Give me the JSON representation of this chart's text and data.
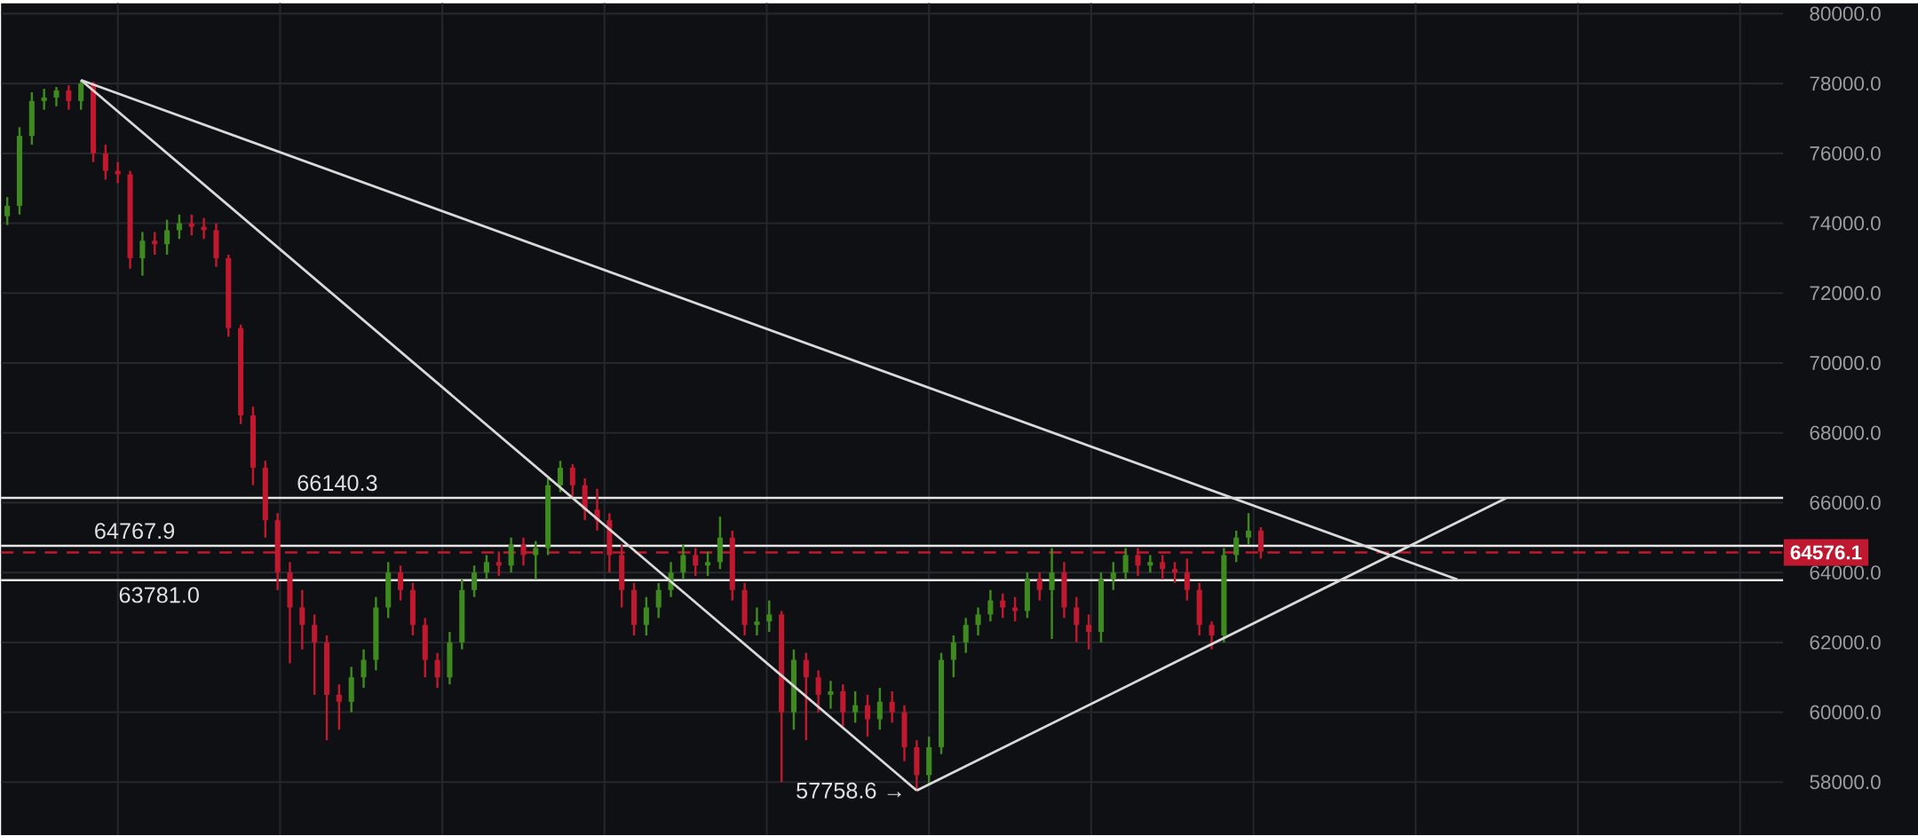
{
  "chart_data": {
    "type": "candlestick",
    "categories": [
      null,
      null,
      null,
      null,
      null,
      null,
      null,
      null,
      null,
      null,
      null,
      null,
      null,
      null,
      null,
      null,
      null,
      null,
      null,
      null,
      null,
      null,
      null,
      null,
      null,
      null,
      null,
      null,
      null,
      null,
      null,
      null,
      null,
      null,
      null,
      null,
      null,
      null,
      null,
      null,
      null,
      null,
      null,
      null,
      null,
      null,
      null,
      null,
      null,
      null,
      null,
      null,
      null,
      null,
      null,
      null,
      null,
      null,
      null,
      null,
      null,
      null,
      null,
      null,
      null,
      null,
      null,
      null,
      null,
      null,
      null,
      null,
      null,
      null,
      null,
      null,
      null,
      null,
      null,
      null,
      null,
      null,
      null,
      null,
      null,
      null,
      null,
      null,
      null,
      null,
      null,
      null,
      null,
      null,
      null,
      null,
      null,
      null,
      null,
      null,
      null,
      null,
      null,
      null,
      null,
      null,
      null,
      null,
      null,
      null,
      null,
      null,
      null,
      null,
      null,
      null,
      null,
      null,
      null,
      null,
      null,
      null,
      null,
      null,
      null,
      null,
      null,
      null,
      null,
      null,
      null,
      null,
      null,
      null,
      null,
      null,
      null,
      null,
      null,
      null,
      null,
      null,
      null,
      null,
      null
    ],
    "ohlc": [
      [
        74200,
        74750,
        73950,
        74500
      ],
      [
        74500,
        76750,
        74250,
        76500
      ],
      [
        76500,
        77750,
        76250,
        77500
      ],
      [
        77500,
        77850,
        77250,
        77600
      ],
      [
        77600,
        77900,
        77350,
        77800
      ],
      [
        77800,
        77950,
        77250,
        77500
      ],
      [
        77500,
        78100,
        77250,
        78000
      ],
      [
        78000,
        78050,
        75750,
        76000
      ],
      [
        76000,
        76250,
        75250,
        75500
      ],
      [
        75500,
        75750,
        75150,
        75400
      ],
      [
        75400,
        75500,
        72700,
        73000
      ],
      [
        73000,
        73750,
        72500,
        73500
      ],
      [
        73500,
        73750,
        73100,
        73400
      ],
      [
        73400,
        74100,
        73100,
        73800
      ],
      [
        73800,
        74250,
        73550,
        74000
      ],
      [
        74000,
        74250,
        73650,
        73900
      ],
      [
        73900,
        74150,
        73550,
        73800
      ],
      [
        73800,
        74000,
        72750,
        73000
      ],
      [
        73000,
        73100,
        70750,
        71000
      ],
      [
        71000,
        71100,
        68250,
        68500
      ],
      [
        68500,
        68750,
        66500,
        67000
      ],
      [
        67000,
        67200,
        65000,
        65500
      ],
      [
        65500,
        65700,
        63500,
        64000
      ],
      [
        64000,
        64300,
        61400,
        63000
      ],
      [
        63000,
        63500,
        61800,
        62500
      ],
      [
        62500,
        62800,
        60500,
        62000
      ],
      [
        62000,
        62200,
        59200,
        60500
      ],
      [
        60500,
        60800,
        59500,
        60300
      ],
      [
        60300,
        61300,
        60000,
        61000
      ],
      [
        61000,
        61800,
        60700,
        61500
      ],
      [
        61500,
        63300,
        61200,
        63000
      ],
      [
        63000,
        64300,
        62700,
        64000
      ],
      [
        64000,
        64200,
        63200,
        63500
      ],
      [
        63500,
        63700,
        62200,
        62500
      ],
      [
        62500,
        62700,
        61000,
        61500
      ],
      [
        61500,
        61700,
        60700,
        61000
      ],
      [
        61000,
        62300,
        60800,
        62000
      ],
      [
        62000,
        63800,
        61800,
        63500
      ],
      [
        63500,
        64200,
        63300,
        64000
      ],
      [
        64000,
        64500,
        63800,
        64300
      ],
      [
        64300,
        64600,
        63900,
        64200
      ],
      [
        64200,
        65000,
        64000,
        64800
      ],
      [
        64800,
        65000,
        64200,
        64500
      ],
      [
        64500,
        64900,
        63800,
        64700
      ],
      [
        64700,
        66700,
        64500,
        66500
      ],
      [
        66500,
        67200,
        66300,
        67000
      ],
      [
        67000,
        67100,
        66100,
        66500
      ],
      [
        66500,
        66700,
        65500,
        65800
      ],
      [
        65800,
        66400,
        65200,
        65500
      ],
      [
        65500,
        65700,
        64000,
        64500
      ],
      [
        64500,
        64800,
        63000,
        63500
      ],
      [
        63500,
        63700,
        62200,
        62500
      ],
      [
        62500,
        63300,
        62200,
        63000
      ],
      [
        63000,
        63700,
        62700,
        63500
      ],
      [
        63500,
        64300,
        63300,
        64000
      ],
      [
        64000,
        64800,
        63800,
        64500
      ],
      [
        64500,
        64700,
        63900,
        64200
      ],
      [
        64200,
        64600,
        63900,
        64300
      ],
      [
        64300,
        65600,
        64100,
        65000
      ],
      [
        65000,
        65200,
        63200,
        63500
      ],
      [
        63500,
        63700,
        62200,
        62500
      ],
      [
        62500,
        63000,
        62200,
        62600
      ],
      [
        62600,
        63200,
        62300,
        62800
      ],
      [
        62800,
        62900,
        58000,
        60000
      ],
      [
        60000,
        61800,
        59500,
        61500
      ],
      [
        61500,
        61700,
        59200,
        61000
      ],
      [
        61000,
        61200,
        60000,
        60500
      ],
      [
        60500,
        60900,
        60100,
        60600
      ],
      [
        60600,
        60800,
        59600,
        60000
      ],
      [
        60000,
        60600,
        59700,
        60200
      ],
      [
        60200,
        60500,
        59300,
        59800
      ],
      [
        59800,
        60700,
        59500,
        60300
      ],
      [
        60300,
        60600,
        59700,
        60000
      ],
      [
        60000,
        60200,
        58600,
        59000
      ],
      [
        59000,
        59200,
        57758.6,
        58200
      ],
      [
        58200,
        59300,
        57900,
        59000
      ],
      [
        59000,
        61700,
        58800,
        61500
      ],
      [
        61500,
        62200,
        61000,
        62000
      ],
      [
        62000,
        62700,
        61700,
        62500
      ],
      [
        62500,
        63000,
        62200,
        62800
      ],
      [
        62800,
        63500,
        62600,
        63200
      ],
      [
        63200,
        63400,
        62700,
        63000
      ],
      [
        63000,
        63300,
        62600,
        62900
      ],
      [
        62900,
        64000,
        62700,
        63800
      ],
      [
        63800,
        64000,
        63200,
        63500
      ],
      [
        63500,
        64700,
        62100,
        64000
      ],
      [
        64000,
        64300,
        62700,
        63000
      ],
      [
        63000,
        63300,
        62000,
        62500
      ],
      [
        62500,
        62800,
        61800,
        62300
      ],
      [
        62300,
        64000,
        62000,
        63800
      ],
      [
        63800,
        64300,
        63500,
        64000
      ],
      [
        64000,
        64700,
        63800,
        64500
      ],
      [
        64500,
        64700,
        63900,
        64200
      ],
      [
        64200,
        64500,
        64000,
        64300
      ],
      [
        64300,
        64500,
        63800,
        64100
      ],
      [
        64100,
        64300,
        63700,
        64000
      ],
      [
        64000,
        64400,
        63200,
        63500
      ],
      [
        63500,
        63700,
        62200,
        62500
      ],
      [
        62500,
        62600,
        61800,
        62200
      ],
      [
        62200,
        64700,
        62000,
        64500
      ],
      [
        64500,
        65200,
        64300,
        65000
      ],
      [
        65000,
        65700,
        64800,
        65200
      ],
      [
        65200,
        65300,
        64400,
        64600
      ],
      null,
      null,
      null,
      null,
      null,
      null,
      null,
      null,
      null,
      null,
      null,
      null,
      null,
      null,
      null,
      null,
      null,
      null,
      null,
      null,
      null,
      null,
      null,
      null,
      null,
      null,
      null,
      null,
      null,
      null,
      null,
      null,
      null,
      null,
      null,
      null,
      null,
      null,
      null,
      null,
      null,
      null
    ],
    "series": [
      {
        "type": "line",
        "color": "#d9d9d9",
        "values": [
          null,
          null,
          null,
          null,
          null,
          null,
          78100,
          null,
          null,
          null,
          null,
          null,
          null,
          null,
          null,
          null,
          null,
          null,
          null,
          null,
          null,
          null,
          null,
          null,
          null,
          null,
          null,
          null,
          null,
          null,
          null,
          null,
          null,
          null,
          null,
          null,
          null,
          null,
          null,
          null,
          null,
          null,
          null,
          null,
          null,
          null,
          null,
          null,
          null,
          null,
          null,
          null,
          null,
          null,
          null,
          null,
          null,
          null,
          null,
          null,
          null,
          null,
          null,
          null,
          null,
          null,
          null,
          null,
          null,
          null,
          null,
          null,
          null,
          null,
          57760,
          null,
          null,
          null,
          null,
          null,
          null,
          null,
          null,
          null,
          null,
          null,
          null,
          null,
          null,
          null,
          null,
          null,
          null,
          null,
          null,
          null,
          null,
          null,
          null,
          null,
          null,
          null,
          null,
          null,
          null,
          null,
          null,
          null,
          null,
          null,
          null,
          null,
          null,
          null,
          null,
          null,
          null,
          null,
          null,
          null,
          null,
          null,
          null,
          null,
          null,
          null,
          null,
          null,
          null,
          null,
          null,
          null,
          null,
          null,
          null,
          null,
          null,
          null,
          null,
          null,
          null,
          null,
          null,
          null,
          null
        ]
      },
      {
        "type": "line",
        "color": "#d9d9d9",
        "values": [
          null,
          null,
          null,
          null,
          null,
          null,
          78100,
          null,
          null,
          null,
          null,
          null,
          null,
          null,
          null,
          null,
          null,
          null,
          null,
          null,
          null,
          null,
          null,
          null,
          null,
          null,
          null,
          null,
          null,
          null,
          null,
          null,
          null,
          null,
          null,
          null,
          null,
          null,
          null,
          null,
          null,
          null,
          null,
          null,
          null,
          null,
          null,
          null,
          null,
          null,
          null,
          null,
          null,
          null,
          null,
          null,
          null,
          null,
          null,
          null,
          null,
          null,
          null,
          null,
          null,
          null,
          null,
          null,
          null,
          null,
          null,
          null,
          null,
          null,
          null,
          null,
          null,
          null,
          null,
          null,
          null,
          null,
          null,
          null,
          null,
          null,
          null,
          null,
          null,
          null,
          null,
          null,
          null,
          null,
          null,
          null,
          null,
          null,
          null,
          null,
          null,
          null,
          null,
          null,
          null,
          null,
          null,
          null,
          null,
          null,
          null,
          null,
          null,
          null,
          null,
          null,
          null,
          null,
          63800,
          null,
          null,
          null,
          null,
          null,
          null,
          null,
          null,
          null,
          null,
          null,
          null,
          null,
          null,
          null,
          null,
          null,
          null,
          null,
          null,
          null,
          null,
          null,
          null,
          null,
          null
        ]
      },
      {
        "type": "line",
        "color": "#d9d9d9",
        "values": [
          null,
          null,
          null,
          null,
          null,
          null,
          null,
          null,
          null,
          null,
          null,
          null,
          null,
          null,
          null,
          null,
          null,
          null,
          null,
          null,
          null,
          null,
          null,
          null,
          null,
          null,
          null,
          null,
          null,
          null,
          null,
          null,
          null,
          null,
          null,
          null,
          null,
          null,
          null,
          null,
          null,
          null,
          null,
          null,
          null,
          null,
          null,
          null,
          null,
          null,
          null,
          null,
          null,
          null,
          null,
          null,
          null,
          null,
          null,
          null,
          null,
          null,
          null,
          null,
          null,
          null,
          null,
          null,
          null,
          null,
          null,
          null,
          null,
          null,
          57760,
          null,
          null,
          null,
          null,
          null,
          null,
          null,
          null,
          null,
          null,
          null,
          null,
          null,
          null,
          null,
          null,
          null,
          null,
          null,
          null,
          null,
          null,
          null,
          null,
          null,
          null,
          null,
          null,
          null,
          null,
          null,
          null,
          null,
          null,
          null,
          null,
          null,
          null,
          null,
          null,
          null,
          null,
          null,
          null,
          null,
          null,
          null,
          66140,
          null,
          null,
          null,
          null,
          null,
          null,
          null,
          null,
          null,
          null,
          null,
          null,
          null,
          null,
          null,
          null,
          null,
          null,
          null,
          null,
          null,
          null
        ]
      }
    ],
    "ylim": [
      56480,
      80300
    ],
    "yticks": [
      {
        "value": 58000,
        "label": "58000.0"
      },
      {
        "value": 60000,
        "label": "60000.0"
      },
      {
        "value": 62000,
        "label": "62000.0"
      },
      {
        "value": 64000,
        "label": "64000.0"
      },
      {
        "value": 66000,
        "label": "66000.0"
      },
      {
        "value": 68000,
        "label": "68000.0"
      },
      {
        "value": 70000,
        "label": "70000.0"
      },
      {
        "value": 72000,
        "label": "72000.0"
      },
      {
        "value": 74000,
        "label": "74000.0"
      },
      {
        "value": 76000,
        "label": "76000.0"
      },
      {
        "value": 78000,
        "label": "78000.0"
      },
      {
        "value": 80000,
        "label": "80000.0"
      }
    ],
    "ref_lines": [
      {
        "axis": "y",
        "value": 66140.3,
        "label": "66140.3",
        "color": "#e6e6e6",
        "line_style": "solid"
      },
      {
        "axis": "y",
        "value": 64767.9,
        "label": "64767.9",
        "color": "#e6e6e6",
        "line_style": "solid"
      },
      {
        "axis": "y",
        "value": 63781.0,
        "label": "63781.0",
        "color": "#e6e6e6",
        "line_style": "solid"
      },
      {
        "axis": "y",
        "value": 64576.1,
        "label": "64576.1",
        "color": "#c0182e",
        "line_style": "dashed"
      }
    ],
    "annotations": [
      "57758.6 →"
    ],
    "grid": true,
    "tick_labels": "y"
  }
}
